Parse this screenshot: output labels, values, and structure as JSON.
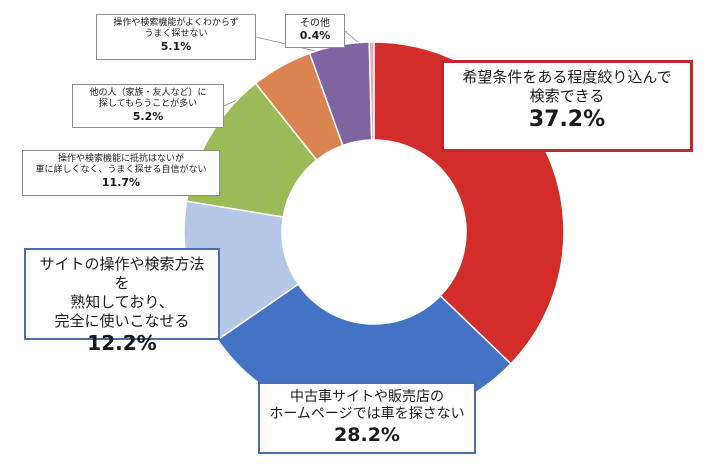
{
  "chart_data": {
    "type": "pie",
    "donut": true,
    "slices": [
      {
        "label": "希望条件をある程度絞り込んで\n検索できる",
        "value": 37.2,
        "display": "37.2%",
        "color": "#d22d2a"
      },
      {
        "label": "中古車サイトや販売店の\nホームページでは車を探さない",
        "value": 28.2,
        "display": "28.2%",
        "color": "#4472c4"
      },
      {
        "label": "サイトの操作や検索方法を\n熟知しており、\n完全に使いこなせる",
        "value": 12.2,
        "display": "12.2%",
        "color": "#b4c7e7"
      },
      {
        "label": "操作や検索機能に抵抗はないが\n車に詳しくなく、うまく探せる自信がない",
        "value": 11.7,
        "display": "11.7%",
        "color": "#9bbb59"
      },
      {
        "label": "他の人（家族・友人など）に\n探してもらうことが多い",
        "value": 5.2,
        "display": "5.2%",
        "color": "#d9844e"
      },
      {
        "label": "操作や検索機能がよくわからず\nうまく探せない",
        "value": 5.1,
        "display": "5.1%",
        "color": "#8064a2"
      },
      {
        "label": "その他",
        "value": 0.4,
        "display": "0.4%",
        "color": "#f2a6b0"
      }
    ]
  }
}
